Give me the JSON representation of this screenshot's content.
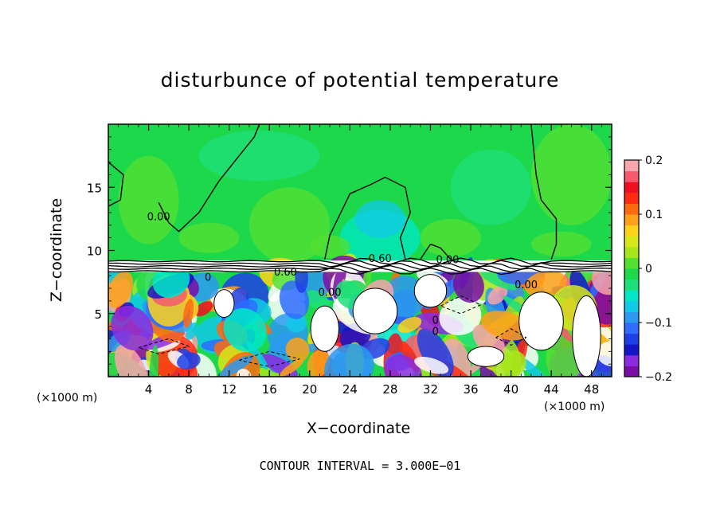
{
  "chart_data": {
    "type": "heatmap",
    "title": "disturbunce of potential temperature",
    "xlabel": "X−coordinate",
    "ylabel": "Z−coordinate",
    "x_unit_label": "(×1000 m)",
    "footnote": "CONTOUR INTERVAL = 3.000E−01",
    "xlim": [
      0,
      50
    ],
    "ylim": [
      0,
      20
    ],
    "x_ticks": [
      4,
      8,
      12,
      16,
      20,
      24,
      28,
      32,
      36,
      40,
      44,
      48
    ],
    "y_ticks": [
      5,
      10,
      15
    ],
    "colorbar": {
      "range": [
        -0.2,
        0.2
      ],
      "ticks": [
        "0.2",
        "0.1",
        "0",
        "−0.1",
        "−0.2"
      ],
      "colors": [
        "#7a0da6",
        "#8a2be2",
        "#1515c8",
        "#1f3fe6",
        "#2f6cff",
        "#2b9af0",
        "#11c9e8",
        "#00e8c8",
        "#1ee07a",
        "#1ed84c",
        "#54e030",
        "#a6e61a",
        "#d6e81a",
        "#ffd21a",
        "#ffa01a",
        "#ff6a10",
        "#ff2a10",
        "#ee1020",
        "#f55a6e",
        "#f7a5aa"
      ]
    },
    "contour_labels": [
      {
        "text": "0.00",
        "x": 5.0,
        "z": 12.4
      },
      {
        "text": "0.60",
        "x": 17.6,
        "z": 8.0
      },
      {
        "text": "0.60",
        "x": 27.0,
        "z": 9.1
      },
      {
        "text": "0.00",
        "x": 33.7,
        "z": 9.0
      },
      {
        "text": "0.00",
        "x": 22.0,
        "z": 6.4
      },
      {
        "text": "0.00",
        "x": 41.5,
        "z": 7.0
      },
      {
        "text": "0",
        "x": 9.9,
        "z": 7.6
      },
      {
        "text": "0",
        "x": 32.5,
        "z": 4.2
      },
      {
        "text": "0",
        "x": 32.5,
        "z": 3.3
      }
    ],
    "grid": false
  }
}
